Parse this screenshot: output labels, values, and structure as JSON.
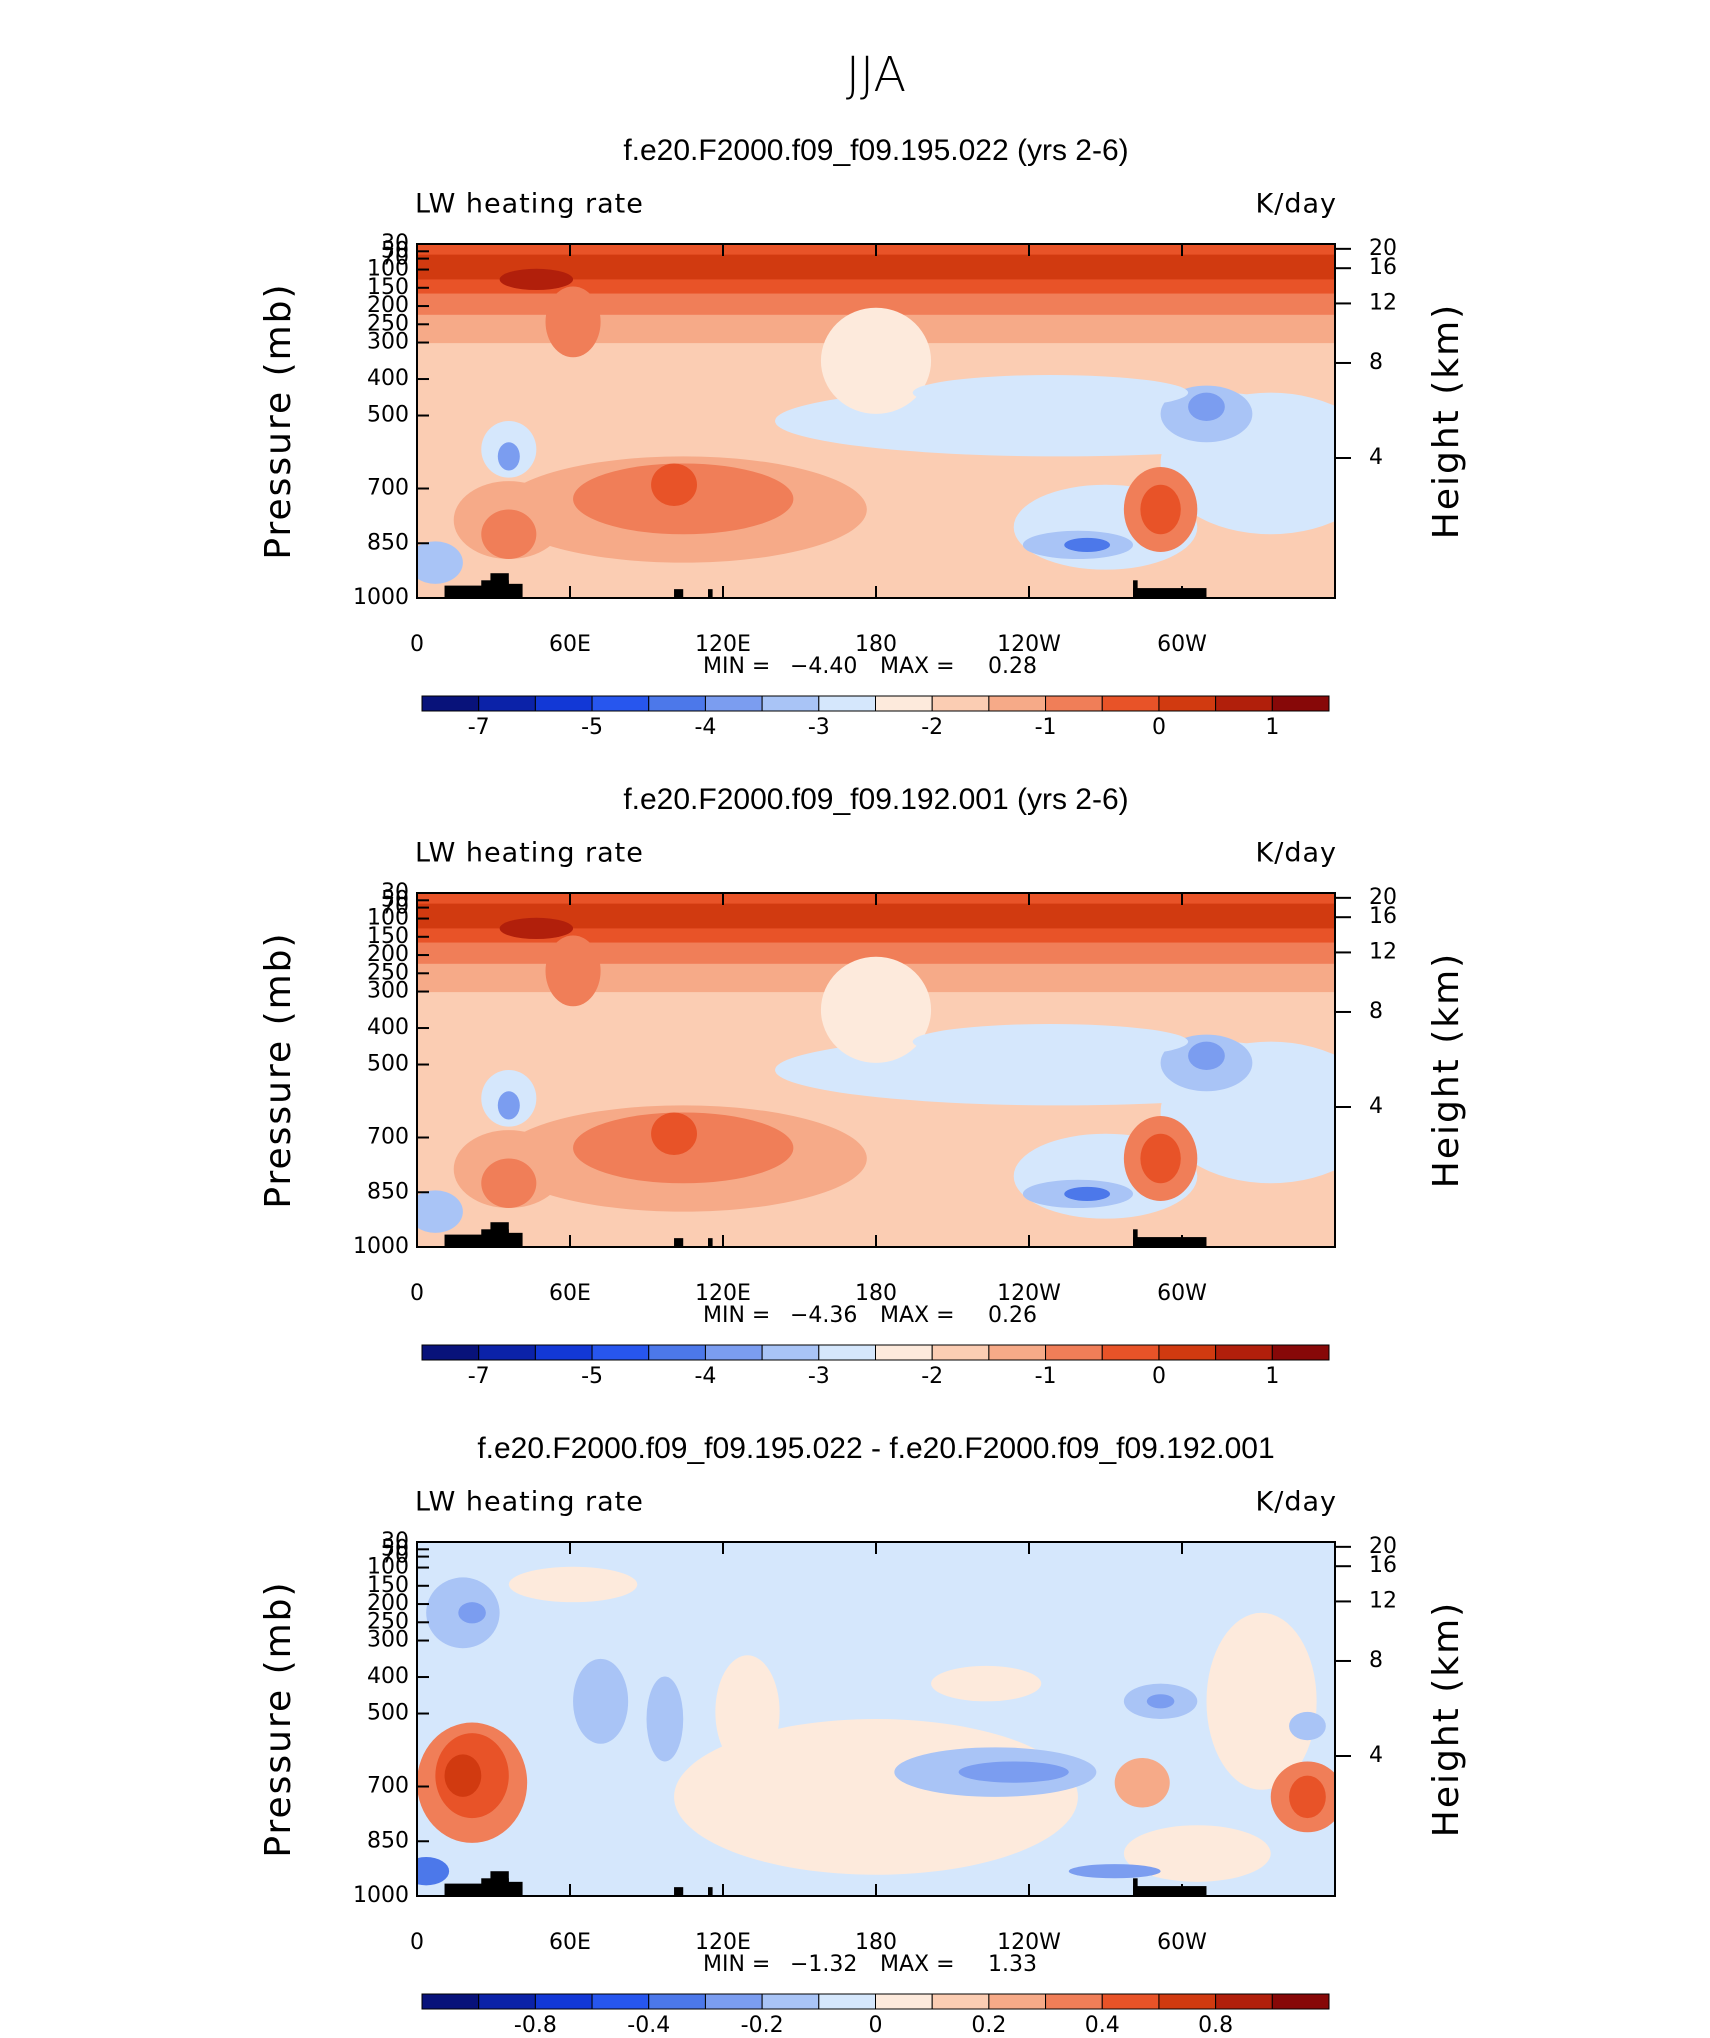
{
  "title": "JJA",
  "chart_data": [
    {
      "type": "contour",
      "title": "f.e20.F2000.f09_f09.195.022 (yrs 2-6)",
      "left_label": "LW heating rate",
      "right_label": "K/day",
      "ylabel": "Pressure (mb)",
      "y2label": "Height (km)",
      "xlim": [
        0,
        360
      ],
      "xticks": [
        0,
        {
          "value": 60,
          "label": "60E"
        },
        {
          "value": 120,
          "label": "120E"
        },
        180,
        {
          "value": 240,
          "label": "120W"
        },
        {
          "value": 300,
          "label": "60W"
        }
      ],
      "ylim": [
        1000,
        30
      ],
      "yticks": [
        30,
        50,
        70,
        100,
        150,
        200,
        250,
        300,
        400,
        500,
        700,
        850,
        1000
      ],
      "y2ticks": [
        20,
        16,
        12,
        8,
        4
      ],
      "min_text": "MIN =",
      "min": {
        "value": -4.4,
        "label": "−4.40"
      },
      "max_text": "MAX =",
      "max": {
        "value": 0.28,
        "label": "0.28"
      },
      "colorbar": {
        "colors": [
          "#08127a",
          "#0b22a8",
          "#1238d6",
          "#2756ee",
          "#4c78ea",
          "#7b9df0",
          "#a9c4f6",
          "#d5e7fc",
          "#fdeadc",
          "#fbcdb3",
          "#f6aa88",
          "#f07e58",
          "#e85328",
          "#d13a10",
          "#b11f0b",
          "#870808"
        ],
        "ticks": [
          -7,
          -5,
          -4,
          -3,
          -2,
          -1,
          0,
          1
        ]
      }
    },
    {
      "type": "contour",
      "title": "f.e20.F2000.f09_f09.192.001 (yrs 2-6)",
      "left_label": "LW heating rate",
      "right_label": "K/day",
      "ylabel": "Pressure (mb)",
      "y2label": "Height (km)",
      "xlim": [
        0,
        360
      ],
      "xticks": [
        0,
        {
          "value": 60,
          "label": "60E"
        },
        {
          "value": 120,
          "label": "120E"
        },
        180,
        {
          "value": 240,
          "label": "120W"
        },
        {
          "value": 300,
          "label": "60W"
        }
      ],
      "ylim": [
        1000,
        30
      ],
      "yticks": [
        30,
        50,
        70,
        100,
        150,
        200,
        250,
        300,
        400,
        500,
        700,
        850,
        1000
      ],
      "y2ticks": [
        20,
        16,
        12,
        8,
        4
      ],
      "min_text": "MIN =",
      "min": {
        "value": -4.36,
        "label": "−4.36"
      },
      "max_text": "MAX =",
      "max": {
        "value": 0.26,
        "label": "0.26"
      },
      "colorbar": {
        "colors": [
          "#08127a",
          "#0b22a8",
          "#1238d6",
          "#2756ee",
          "#4c78ea",
          "#7b9df0",
          "#a9c4f6",
          "#d5e7fc",
          "#fdeadc",
          "#fbcdb3",
          "#f6aa88",
          "#f07e58",
          "#e85328",
          "#d13a10",
          "#b11f0b",
          "#870808"
        ],
        "ticks": [
          -7,
          -5,
          -4,
          -3,
          -2,
          -1,
          0,
          1
        ]
      }
    },
    {
      "type": "contour",
      "title": "f.e20.F2000.f09_f09.195.022 - f.e20.F2000.f09_f09.192.001",
      "left_label": "LW heating rate",
      "right_label": "K/day",
      "ylabel": "Pressure (mb)",
      "y2label": "Height (km)",
      "xlim": [
        0,
        360
      ],
      "xticks": [
        0,
        {
          "value": 60,
          "label": "60E"
        },
        {
          "value": 120,
          "label": "120E"
        },
        180,
        {
          "value": 240,
          "label": "120W"
        },
        {
          "value": 300,
          "label": "60W"
        }
      ],
      "ylim": [
        1000,
        30
      ],
      "yticks": [
        30,
        50,
        70,
        100,
        150,
        200,
        250,
        300,
        400,
        500,
        700,
        850,
        1000
      ],
      "y2ticks": [
        20,
        16,
        12,
        8,
        4
      ],
      "min_text": "MIN =",
      "min": {
        "value": -1.32,
        "label": "−1.32"
      },
      "max_text": "MAX =",
      "max": {
        "value": 1.33,
        "label": "1.33"
      },
      "colorbar": {
        "colors": [
          "#08127a",
          "#0b22a8",
          "#1238d6",
          "#2756ee",
          "#4c78ea",
          "#7b9df0",
          "#a9c4f6",
          "#d5e7fc",
          "#fdeadc",
          "#fbcdb3",
          "#f6aa88",
          "#f07e58",
          "#e85328",
          "#d13a10",
          "#b11f0b",
          "#870808"
        ],
        "ticks": [
          -0.8,
          -0.4,
          -0.2,
          0,
          0.2,
          0.4,
          0.8
        ]
      }
    }
  ]
}
